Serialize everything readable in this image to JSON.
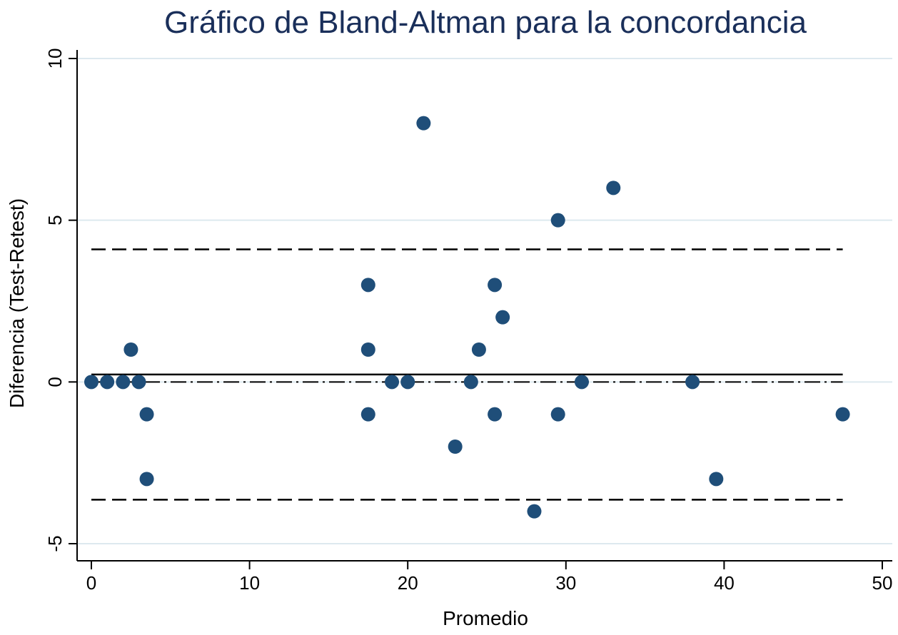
{
  "chart_data": {
    "type": "scatter",
    "title": "Gráfico de Bland-Altman para la concordancia",
    "xlabel": "Promedio",
    "ylabel": "Diferencia (Test-Retest)",
    "xlim": [
      0,
      50
    ],
    "ylim": [
      -5,
      10
    ],
    "xticks": [
      "0",
      "10",
      "20",
      "30",
      "40",
      "50"
    ],
    "yticks": [
      "-5",
      "0",
      "5",
      "10"
    ],
    "grid": true,
    "points": [
      {
        "x": 0,
        "y": 0
      },
      {
        "x": 1,
        "y": 0
      },
      {
        "x": 2,
        "y": 0
      },
      {
        "x": 2.5,
        "y": 1
      },
      {
        "x": 3,
        "y": 0
      },
      {
        "x": 3.5,
        "y": -1
      },
      {
        "x": 3.5,
        "y": -3
      },
      {
        "x": 17.5,
        "y": 3
      },
      {
        "x": 17.5,
        "y": 1
      },
      {
        "x": 17.5,
        "y": -1
      },
      {
        "x": 19,
        "y": 0
      },
      {
        "x": 20,
        "y": 0
      },
      {
        "x": 21,
        "y": 8
      },
      {
        "x": 23,
        "y": -2
      },
      {
        "x": 24,
        "y": 0
      },
      {
        "x": 24.5,
        "y": 1
      },
      {
        "x": 25.5,
        "y": 3
      },
      {
        "x": 25.5,
        "y": -1
      },
      {
        "x": 26,
        "y": 2
      },
      {
        "x": 28,
        "y": -4
      },
      {
        "x": 29.5,
        "y": 5
      },
      {
        "x": 29.5,
        "y": -1
      },
      {
        "x": 31,
        "y": 0
      },
      {
        "x": 33,
        "y": 6
      },
      {
        "x": 38,
        "y": 0
      },
      {
        "x": 39.5,
        "y": -3
      },
      {
        "x": 47.5,
        "y": -1
      }
    ],
    "reference_lines": {
      "mean_difference": 0.23,
      "upper_limit_of_agreement": 4.1,
      "lower_limit_of_agreement": -3.64,
      "zero_line": 0
    },
    "colors": {
      "title": "#1a2f5a",
      "marker": "#1f4e79",
      "grid": "#dde9ef",
      "lines": "#000000"
    }
  }
}
